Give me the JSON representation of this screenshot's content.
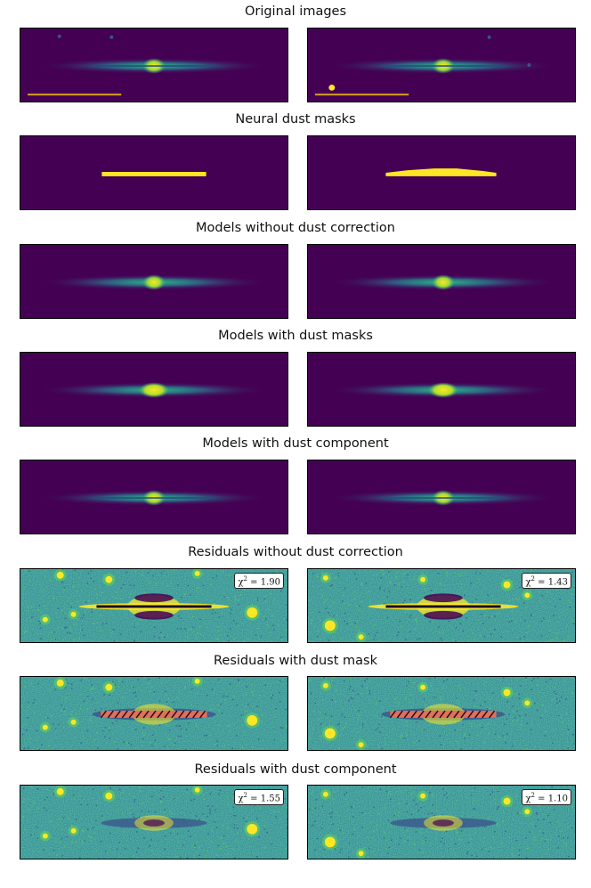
{
  "rows": [
    {
      "title": "Original images",
      "type": "original"
    },
    {
      "title": "Neural dust masks",
      "type": "mask"
    },
    {
      "title": "Models without dust correction",
      "type": "model_nodust"
    },
    {
      "title": "Models with dust masks",
      "type": "model_mask"
    },
    {
      "title": "Models with dust component",
      "type": "model_dust"
    },
    {
      "title": "Residuals without dust correction",
      "type": "resid_nodust",
      "chi2": [
        "1.90",
        "1.43"
      ]
    },
    {
      "title": "Residuals with dust mask",
      "type": "resid_mask"
    },
    {
      "title": "Residuals with dust component",
      "type": "resid_dust",
      "chi2": [
        "1.55",
        "1.10"
      ]
    }
  ],
  "chi_prefix": "χ",
  "colors": {
    "bg": "#440154",
    "mid": "#21918c",
    "bright": "#fde725",
    "scalebar": "#d9a21b",
    "hatch": "#e0705a"
  }
}
